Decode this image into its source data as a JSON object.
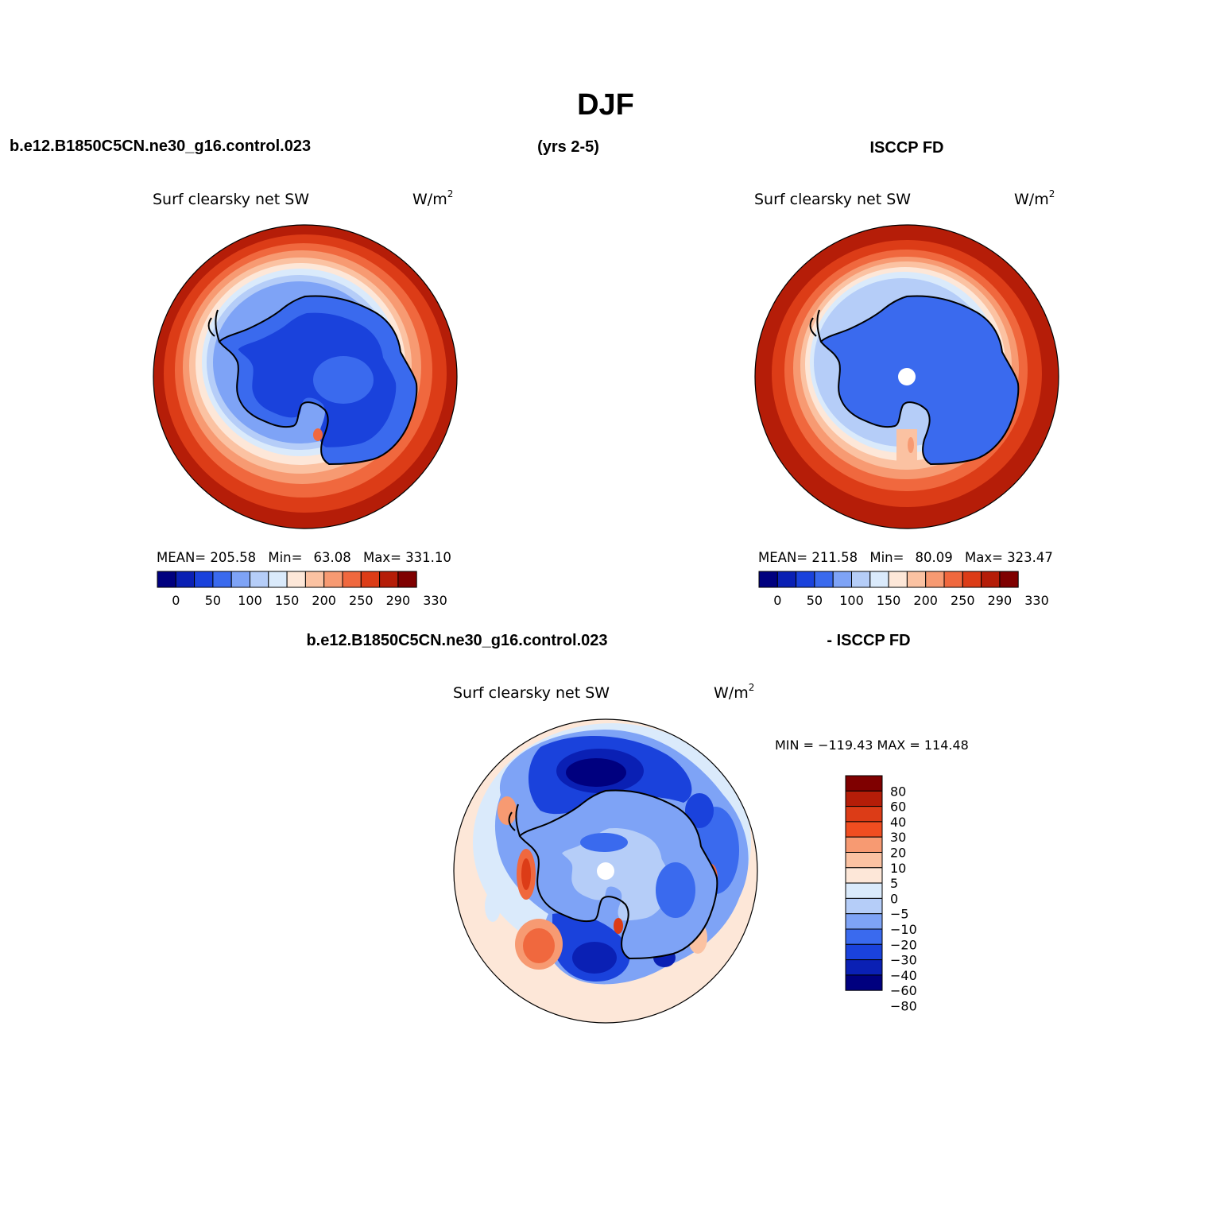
{
  "title": "DJF",
  "case_name": "b.e12.B1850C5CN.ne30_g16.control.023",
  "years": "(yrs 2-5)",
  "obs_name": "ISCCP FD",
  "diff_case_name": "b.e12.B1850C5CN.ne30_g16.control.023",
  "diff_obs_name": "- ISCCP FD",
  "variable": "Surf clearsky net SW",
  "units_base": "W/m",
  "units_exp": "2",
  "panels": {
    "model": {
      "mean_label": "MEAN=",
      "mean": "205.58",
      "min_label": "Min=",
      "min": "63.08",
      "max_label": "Max=",
      "max": "331.10",
      "colorbar_labels": [
        "0",
        "50",
        "100",
        "150",
        "200",
        "250",
        "290",
        "330"
      ]
    },
    "obs": {
      "mean_label": "MEAN=",
      "mean": "211.58",
      "min_label": "Min=",
      "min": "80.09",
      "max_label": "Max=",
      "max": "323.47",
      "colorbar_labels": [
        "0",
        "50",
        "100",
        "150",
        "200",
        "250",
        "290",
        "330"
      ]
    },
    "diff": {
      "minmax_text": "MIN = −119.43 MAX = 114.48",
      "colorbar_labels": [
        "80",
        "60",
        "40",
        "30",
        "20",
        "10",
        "5",
        "0",
        "−5",
        "−10",
        "−20",
        "−30",
        "−40",
        "−60",
        "−80"
      ]
    }
  },
  "colors": {
    "abs_scale": [
      "#00007f",
      "#0a20b4",
      "#1a42dc",
      "#3a6aee",
      "#7ea3f6",
      "#b5cdf8",
      "#daeafb",
      "#fde7d8",
      "#fbc2a2",
      "#f79a72",
      "#f0683e",
      "#dc3c17",
      "#b51d08",
      "#7f0000"
    ],
    "diff_scale": [
      "#7f0000",
      "#b51d08",
      "#dc3c17",
      "#f04d20",
      "#f79a72",
      "#fbc2a2",
      "#fde7d8",
      "#daeafb",
      "#b5cdf8",
      "#7ea3f6",
      "#3a6aee",
      "#1a42dc",
      "#0a20b4",
      "#00007f"
    ]
  },
  "icons": {
    "map": "south-polar-stereographic-map",
    "continent": "antarctica-outline"
  }
}
